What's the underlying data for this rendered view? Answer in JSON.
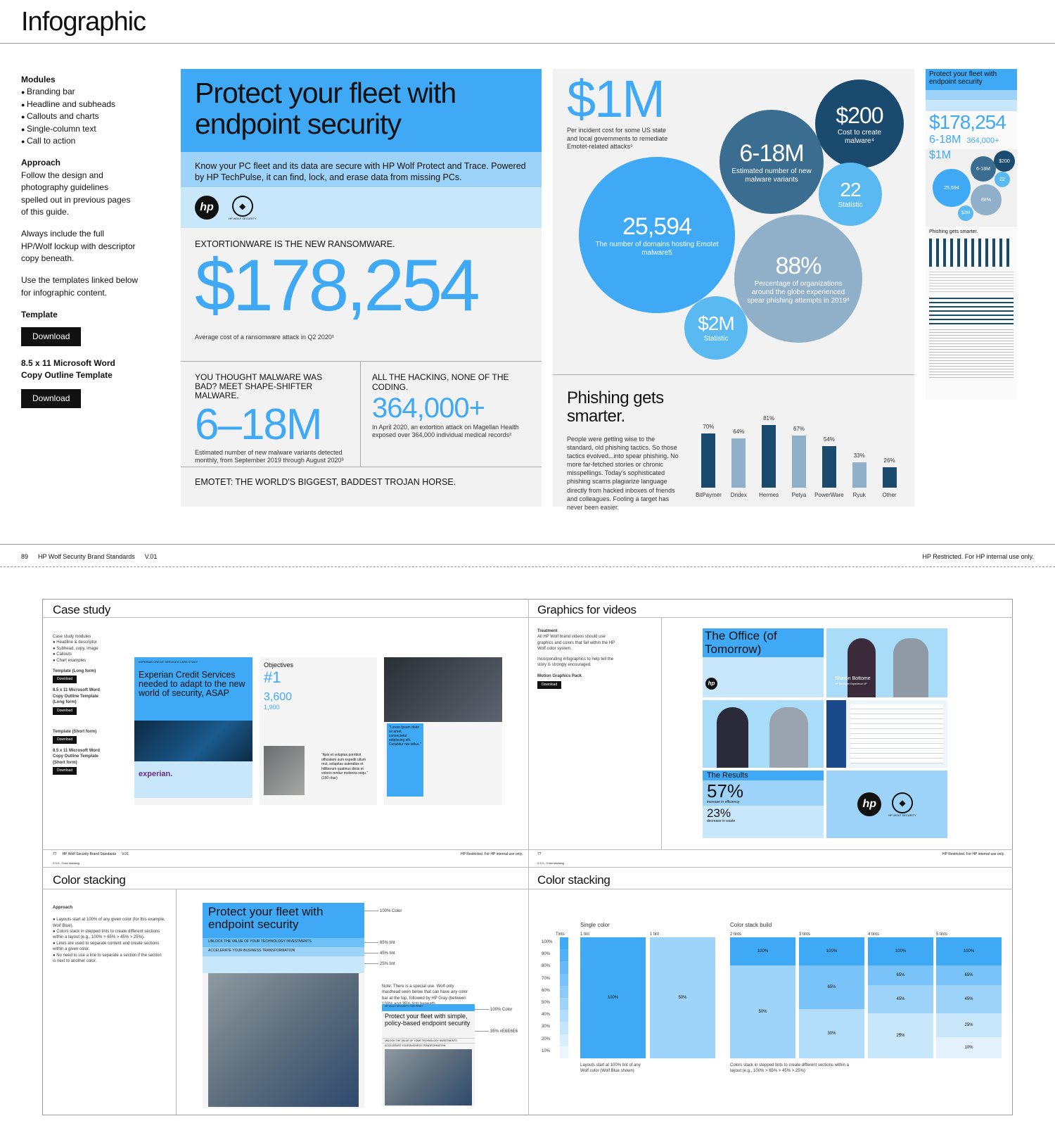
{
  "page": {
    "title": "Infographic"
  },
  "sidebar": {
    "modules_h": "Modules",
    "modules": [
      "Branding bar",
      "Headline and subheads",
      "Callouts and charts",
      "Single-column text",
      "Call to action"
    ],
    "approach_h": "Approach",
    "approach1": "Follow the design and photography guidelines spelled out in previous pages of this guide.",
    "approach2": "Always include the full HP/Wolf lockup with descriptor copy beneath.",
    "approach3": "Use the templates linked below for infographic content.",
    "template_h": "Template",
    "download": "Download",
    "word_h": "8.5 x 11 Microsoft Word Copy Outline Template",
    "download2": "Download"
  },
  "hero": {
    "headline": "Protect your fleet with endpoint security",
    "sub": "Know your PC fleet and its data are secure with HP Wolf Protect and Trace. Powered by HP TechPulse, it can find, lock, and erase data from missing PCs.",
    "logo_hp": "hp",
    "logo_wolf": "HP WOLF SECURITY",
    "ext_label": "EXTORTIONWARE IS THE NEW RANSOMWARE.",
    "ext_value": "$178,254",
    "ext_cap": "Average cost of a ransomware attack in Q2 2020¹",
    "mal_label": "YOU THOUGHT MALWARE WAS BAD? MEET SHAPE-SHIFTER MALWARE.",
    "mal_value": "6–18M",
    "mal_cap": "Estimated number of new malware variants detected monthly, from September 2019 through August 2020³",
    "hack_label": "ALL THE HACKING, NONE OF THE CODING.",
    "hack_value": "364,000+",
    "hack_cap": "In April 2020, an extortion attack on Magellan Health exposed over 364,000 individual medical records²",
    "emotet": "EMOTET: THE WORLD'S BIGGEST, BADDEST TROJAN HORSE."
  },
  "bubbles": {
    "m1_value": "$1M",
    "m1_cap": "Per incident cost for some US state and local governments to remediate Emotet-related attacks⁵",
    "c200_value": "$200",
    "c200_cap": "Cost to create malware⁴",
    "c618_value": "6-18M",
    "c618_cap": "Estimated number of new malware variants",
    "c22_value": "22",
    "c22_cap": "Statistic",
    "c25_value": "25,594",
    "c25_cap": "The number of domains hosting Emotet malware5",
    "c88_value": "88%",
    "c88_cap": "Percentage of organizations around the globe experienced spear phishing attempts in 2019⁶",
    "c2m_value": "$2M",
    "c2m_cap": "Statistic"
  },
  "phishing": {
    "title": "Phishing gets smarter.",
    "body": "People were getting wise to the standard, old phishing tactics. So those tactics evolved...into spear phishing. No more far-fetched stories or chronic misspellings. Today's sophisticated phishing scams plagiarize language directly from hacked inboxes of friends and colleagues. Fooling a target has never been easier."
  },
  "chart_data": {
    "type": "bar",
    "categories": [
      "BitPaymer",
      "Dridex",
      "Hermes",
      "Petya",
      "PowerWare",
      "Ryuk",
      "Other"
    ],
    "values": [
      70,
      64,
      81,
      67,
      54,
      33,
      26
    ],
    "value_labels": [
      "70%",
      "64%",
      "81%",
      "67%",
      "54%",
      "33%",
      "26%"
    ],
    "colors": [
      "#1a4a6e",
      "#8fb0c8",
      "#1a4a6e",
      "#8fb0c8",
      "#1a4a6e",
      "#8fb0c8",
      "#1a4a6e"
    ],
    "ylim": [
      0,
      100
    ]
  },
  "thumb": {
    "title": "Protect your fleet with endpoint security",
    "v1": "$178,254",
    "v2": "6-18M",
    "v3": "364,000+",
    "v4": "$1M",
    "b1": "6-18M",
    "b2": "$200",
    "b3": "22",
    "b4": "25,594",
    "b5": "88%",
    "b6": "$2M",
    "phish": "Phishing gets smarter."
  },
  "footer": {
    "page": "89",
    "brand": "HP Wolf Security Brand Standards",
    "version": "V.01",
    "restricted": "HP Restricted. For HP internal use only."
  },
  "case": {
    "title": "Case study",
    "notes": "Case study modules\n● Headline & descriptor\n● Subhead, copy, image\n● Callouts\n● Chart examples",
    "t1": "Template (Long form)",
    "t2": "8.5 x 11 Microsoft Word Copy Outline Template (Long form)",
    "t3": "Template (Short form)",
    "t4": "8.5 x 11 Microsoft Word Copy Outline Template (Short form)",
    "dl": "Download",
    "header": "EXPERIAN CREDIT SERVICES CASE STUDY",
    "headline": "Experian Credit Services needed to adapt to the new world of security, ASAP",
    "objectives": "Objectives",
    "n1": "#1",
    "n2": "3,600",
    "n3": "1,900",
    "brand": "experian.",
    "quote": "\"Apis et voluptas porribist officiatem sum expedit ullum rest, solupitas autendios et hilliberum quatinus disiis et volorio rentiur moloreia sequ.\" (150 char)",
    "pull": "\"Lorem ipsum dolor sit amet, consectetur adipiscing elit. Curabitur nisi tellus.\""
  },
  "footer2": {
    "l": "77",
    "lb": "HP Wolf Security Brand Standards",
    "lv": "V.01",
    "r": "HP Restricted. For HP internal use only.",
    "l2": "77",
    "r2": "HP Restricted. For HP internal use only."
  },
  "videos": {
    "title": "Graphics for videos",
    "treatment_h": "Treatment",
    "treatment": "All HP Wolf brand videos should use graphics and colors that fall within the HP Wolf color system.",
    "incorp": "Incorporating infographics to help tell the story is strongly encouraged.",
    "pack": "Motion Graphics Pack",
    "dl": "Download",
    "office": "The Office (of Tomorrow)",
    "name": "Sharon Bottome",
    "role": "HP Employee Experience VP",
    "results": "The Results",
    "p1": "57%",
    "p1c": "increase in efficiency",
    "p2": "23%",
    "p2c": "decrease in waste",
    "wolf": "HP WOLF SECURITY"
  },
  "stack1": {
    "sect": "2.3.3 - Color stacking",
    "title": "Color stacking",
    "approach_h": "Approach",
    "approach": "● Layouts start at 100% of any given color (for this example, Wolf Blue).\n● Colors stack in stepped tints to create different sections within a layout (e.g., 100% > 65% > 45% > 25%).\n● Lines are used to separate content and create sections within a given color.\n● No need to use a line to separate a section if the section is next to another color.",
    "headline": "Protect your fleet with endpoint security",
    "l1": "UNLOCK THE VALUE OF YOUR TECHNOLOGY INVESTMENTS",
    "l2": "ACCELERATE YOUR BUSINESS TRANSFORMATION",
    "a1": "100% Color",
    "a2": "65% tint",
    "a3": "45% tint",
    "a4": "25% tint",
    "note": "Note: There is a special use. Wolf-only masthead seen below that can have any color bar at the top, followed by HP Gray (between 100% and 35% tint) beneath.",
    "small_head": "HP WOLF SECURITY FOR PRINT",
    "small_title": "Protect your fleet with simple, policy-based endpoint security",
    "small_l1": "UNLOCK THE VALUE OF YOUR TECHNOLOGY INVESTMENTS",
    "small_l2": "ACCELERATE YOUR BUSINESS TRANSFORMATION",
    "a5": "100% Color",
    "a6": "35% #E6E6E6"
  },
  "stack2": {
    "sect": "2.3.3 - Color stacking",
    "title": "Color stacking",
    "single": "Single color",
    "build": "Color stack build",
    "tints": "Tints",
    "tint_levels": [
      "100%",
      "90%",
      "80%",
      "70%",
      "60%",
      "50%",
      "40%",
      "30%",
      "20%",
      "10%"
    ],
    "c1": "1 tint",
    "c2": "1 tint",
    "c3": "2 tints",
    "c4": "3 tints",
    "c5": "4 tints",
    "c6": "5 tints",
    "v100": "100%",
    "v50": "50%",
    "v65": "65%",
    "v45": "45%",
    "v30": "30%",
    "v25": "25%",
    "v10": "10%",
    "cap1": "Layouts start at 100% tint of any Wolf color (Wolf Blue shown)",
    "cap2": "Colors stack in stepped tints to create different sections within a layout (e.g., 100% > 65% > 45% > 25%)"
  }
}
